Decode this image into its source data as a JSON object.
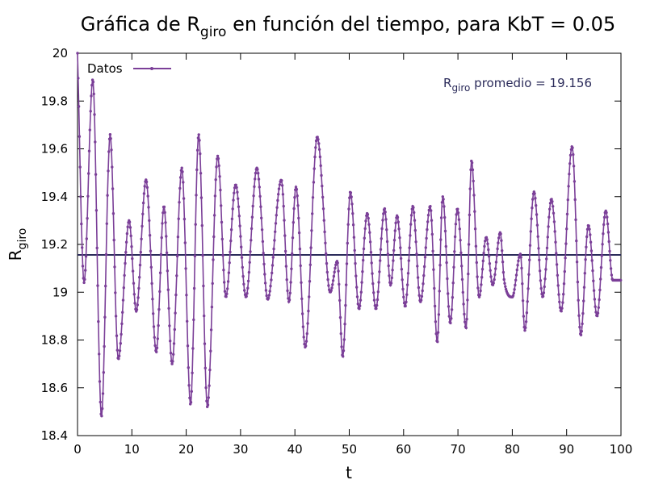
{
  "chart_data": {
    "type": "line",
    "title": {
      "main": "Gráfica de R",
      "sub": "giro",
      "rest": " en función del tiempo, para KbT = 0.05"
    },
    "xlabel": "t",
    "ylabel": {
      "main": "R",
      "sub": "giro"
    },
    "xlim": [
      0,
      100
    ],
    "ylim": [
      18.4,
      20
    ],
    "xticks": [
      0,
      10,
      20,
      30,
      40,
      50,
      60,
      70,
      80,
      90,
      100
    ],
    "yticks": [
      18.4,
      18.6,
      18.8,
      19,
      19.2,
      19.4,
      19.6,
      19.8,
      20
    ],
    "grid": false,
    "legend": {
      "position": "top-left",
      "entries": [
        "Datos"
      ]
    },
    "annotation": {
      "main": "R",
      "sub": "giro",
      "rest": " promedio = 19.156"
    },
    "average": 19.156,
    "colors": {
      "series": "#7b3f98",
      "average": "#2b2b5a"
    },
    "series": [
      {
        "name": "Datos",
        "x": [
          0,
          1.2,
          2.8,
          4.4,
          6.0,
          7.5,
          9.5,
          10.8,
          12.6,
          14.5,
          15.9,
          17.4,
          19.2,
          20.8,
          22.3,
          23.9,
          25.8,
          27.3,
          29.1,
          31.0,
          33.0,
          35.0,
          37.5,
          38.9,
          40.2,
          41.9,
          44.1,
          46.5,
          47.8,
          48.8,
          50.2,
          51.8,
          53.3,
          54.9,
          56.5,
          57.6,
          58.8,
          60.3,
          61.7,
          63.1,
          64.9,
          66.2,
          67.2,
          68.6,
          69.9,
          71.5,
          72.5,
          73.9,
          75.2,
          76.4,
          77.8,
          78.5,
          80.0,
          81.5,
          82.3,
          84.0,
          85.6,
          87.2,
          89.0,
          91.0,
          92.6,
          94.0,
          95.6,
          97.2,
          98.5,
          100
        ],
        "y": [
          20.0,
          19.04,
          19.89,
          18.48,
          19.66,
          18.72,
          19.3,
          18.92,
          19.47,
          18.75,
          19.36,
          18.7,
          19.52,
          18.53,
          19.66,
          18.52,
          19.57,
          18.98,
          19.45,
          18.98,
          19.52,
          18.97,
          19.47,
          18.96,
          19.44,
          18.77,
          19.65,
          19.0,
          19.13,
          18.73,
          19.42,
          18.93,
          19.33,
          18.93,
          19.35,
          19.03,
          19.32,
          18.94,
          19.36,
          18.96,
          19.36,
          18.79,
          19.4,
          18.87,
          19.35,
          18.85,
          19.55,
          18.98,
          19.23,
          19.03,
          19.25,
          19.05,
          18.98,
          19.16,
          18.84,
          19.42,
          18.98,
          19.39,
          18.92,
          19.61,
          18.82,
          19.28,
          18.9,
          19.34,
          19.05,
          19.05
        ]
      }
    ]
  }
}
